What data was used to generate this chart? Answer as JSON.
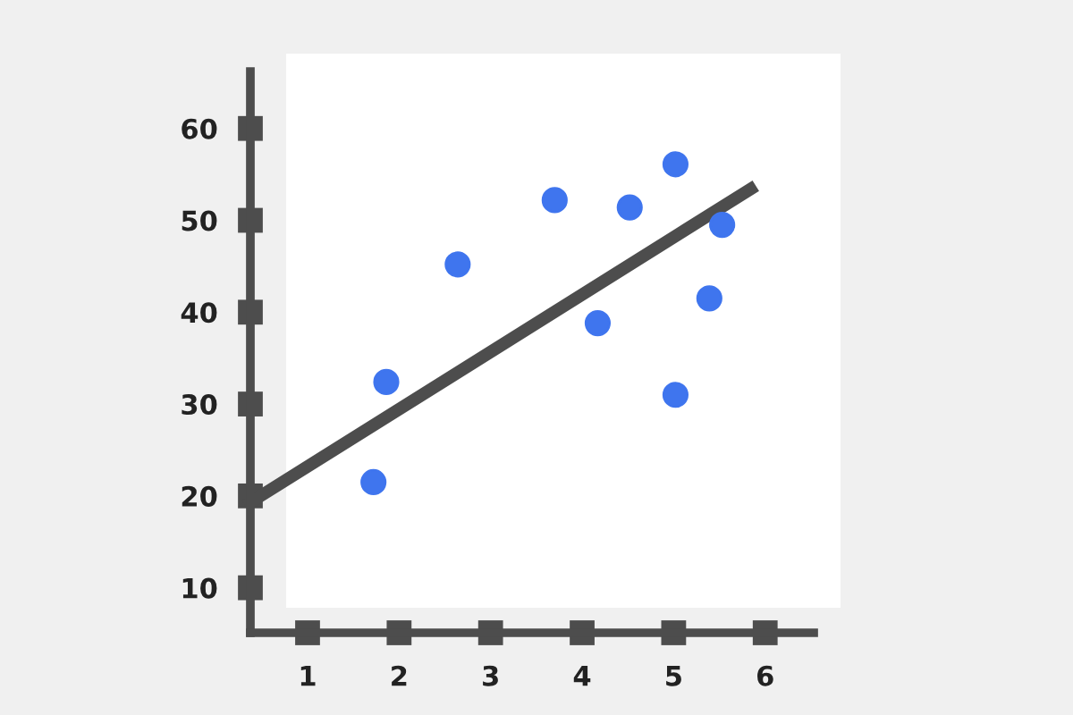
{
  "chart_data": {
    "type": "scatter",
    "series": [
      {
        "type": "scatter",
        "marker": "circle",
        "color": "#3f75ee",
        "x": [
          1.72,
          1.86,
          2.64,
          3.7,
          4.17,
          4.52,
          5.02,
          5.02,
          5.39,
          5.53
        ],
        "values": [
          21.5,
          32.4,
          45.2,
          52.2,
          38.8,
          51.4,
          56.1,
          31.0,
          41.5,
          49.5
        ]
      },
      {
        "type": "line",
        "marker": "none",
        "color": "#4d4d4d",
        "x": [
          0.375,
          5.84
        ],
        "values": [
          19.3,
          53.4
        ]
      }
    ],
    "xlim": [
      0.375,
      6.53
    ],
    "ylim": [
      5.1,
      66.2
    ],
    "xticks": [
      1,
      2,
      3,
      4,
      5,
      6
    ],
    "yticks": [
      10,
      20,
      30,
      40,
      50,
      60
    ],
    "grid": false,
    "line_style": "solid"
  }
}
